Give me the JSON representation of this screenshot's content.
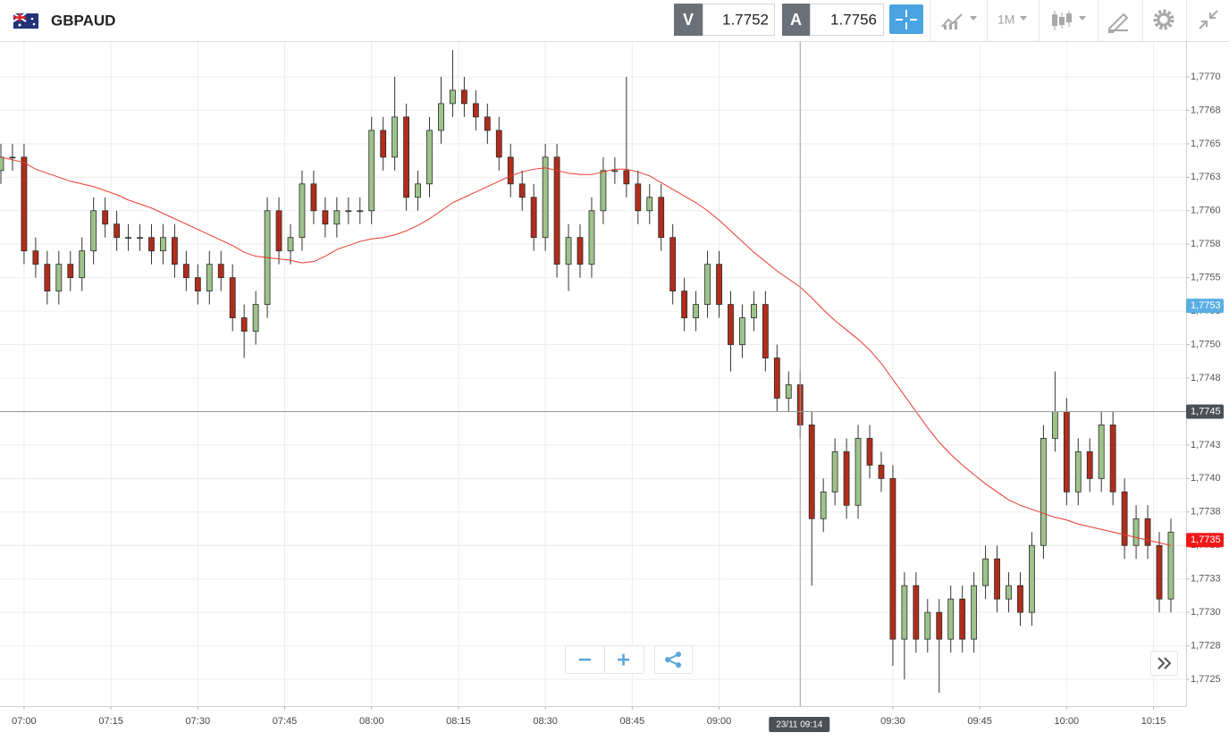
{
  "toolbar": {
    "symbol": "GBPAUD",
    "sell_label": "V",
    "sell_price": 1.7752,
    "buy_label": "A",
    "buy_price": 1.7756,
    "timeframe": "1M"
  },
  "chart_data": {
    "type": "candlestick",
    "x": [
      "06:56",
      "06:58",
      "07:00",
      "07:02",
      "07:04",
      "07:06",
      "07:08",
      "07:10",
      "07:12",
      "07:14",
      "07:16",
      "07:18",
      "07:20",
      "07:22",
      "07:24",
      "07:26",
      "07:28",
      "07:30",
      "07:32",
      "07:34",
      "07:36",
      "07:38",
      "07:40",
      "07:42",
      "07:44",
      "07:46",
      "07:48",
      "07:50",
      "07:52",
      "07:54",
      "07:56",
      "07:58",
      "08:00",
      "08:02",
      "08:04",
      "08:06",
      "08:08",
      "08:10",
      "08:12",
      "08:14",
      "08:16",
      "08:18",
      "08:20",
      "08:22",
      "08:24",
      "08:26",
      "08:28",
      "08:30",
      "08:32",
      "08:34",
      "08:36",
      "08:38",
      "08:40",
      "08:42",
      "08:44",
      "08:46",
      "08:48",
      "08:50",
      "08:52",
      "08:54",
      "08:56",
      "08:58",
      "09:00",
      "09:02",
      "09:04",
      "09:06",
      "09:08",
      "09:10",
      "09:12",
      "09:14",
      "09:16",
      "09:18",
      "09:20",
      "09:22",
      "09:24",
      "09:26",
      "09:28",
      "09:30",
      "09:32",
      "09:34",
      "09:36",
      "09:38",
      "09:40",
      "09:42",
      "09:44",
      "09:46",
      "09:48",
      "09:50",
      "09:52",
      "09:54",
      "09:56",
      "09:58",
      "10:00",
      "10:02",
      "10:04",
      "10:06",
      "10:08",
      "10:10",
      "10:12",
      "10:14",
      "10:16",
      "10:18"
    ],
    "open": [
      1.7763,
      1.7764,
      1.7764,
      1.7757,
      1.7756,
      1.7754,
      1.7756,
      1.7755,
      1.7757,
      1.776,
      1.7759,
      1.7758,
      1.7758,
      1.7758,
      1.7757,
      1.7758,
      1.7756,
      1.7755,
      1.7754,
      1.7756,
      1.7755,
      1.7752,
      1.7751,
      1.7753,
      1.776,
      1.7757,
      1.7758,
      1.7762,
      1.776,
      1.7759,
      1.776,
      1.776,
      1.776,
      1.7766,
      1.7764,
      1.7767,
      1.7761,
      1.7762,
      1.7766,
      1.7768,
      1.7769,
      1.7768,
      1.7767,
      1.7766,
      1.7764,
      1.7762,
      1.7761,
      1.7758,
      1.7764,
      1.7756,
      1.7758,
      1.7756,
      1.776,
      1.7763,
      1.7763,
      1.7762,
      1.776,
      1.7761,
      1.7758,
      1.7754,
      1.7752,
      1.7753,
      1.7756,
      1.7753,
      1.775,
      1.7752,
      1.7753,
      1.7749,
      1.7746,
      1.7747,
      1.7744,
      1.7737,
      1.7739,
      1.7742,
      1.7738,
      1.7743,
      1.7741,
      1.774,
      1.7728,
      1.7732,
      1.7728,
      1.773,
      1.7728,
      1.7731,
      1.7728,
      1.7732,
      1.7734,
      1.7731,
      1.7732,
      1.773,
      1.7735,
      1.7743,
      1.7745,
      1.7739,
      1.7742,
      1.774,
      1.7744,
      1.7739,
      1.7735,
      1.7737,
      1.7735,
      1.7731
    ],
    "high": [
      1.7765,
      1.7765,
      1.7765,
      1.7758,
      1.7757,
      1.7757,
      1.7757,
      1.7758,
      1.7761,
      1.7761,
      1.776,
      1.7759,
      1.7759,
      1.7759,
      1.7759,
      1.7759,
      1.7757,
      1.7756,
      1.7757,
      1.7757,
      1.7756,
      1.7753,
      1.7754,
      1.7761,
      1.7761,
      1.7759,
      1.7763,
      1.7763,
      1.7761,
      1.7761,
      1.7761,
      1.7761,
      1.7767,
      1.7767,
      1.777,
      1.7768,
      1.7763,
      1.7767,
      1.777,
      1.7772,
      1.777,
      1.7769,
      1.7768,
      1.7767,
      1.7765,
      1.7763,
      1.7762,
      1.7765,
      1.7765,
      1.7759,
      1.7759,
      1.7761,
      1.7764,
      1.7764,
      1.777,
      1.7763,
      1.7762,
      1.7762,
      1.7759,
      1.7755,
      1.7754,
      1.7757,
      1.7757,
      1.7754,
      1.7753,
      1.7754,
      1.7754,
      1.775,
      1.7748,
      1.7748,
      1.7745,
      1.774,
      1.7743,
      1.7743,
      1.7744,
      1.7744,
      1.7742,
      1.7741,
      1.7733,
      1.7733,
      1.7731,
      1.7731,
      1.7732,
      1.7732,
      1.7733,
      1.7735,
      1.7735,
      1.7733,
      1.7733,
      1.7736,
      1.7744,
      1.7748,
      1.7746,
      1.7743,
      1.7743,
      1.7745,
      1.7745,
      1.774,
      1.7738,
      1.7738,
      1.7736,
      1.7737
    ],
    "low": [
      1.7762,
      1.7763,
      1.7756,
      1.7755,
      1.7753,
      1.7753,
      1.7754,
      1.7754,
      1.7756,
      1.7758,
      1.7757,
      1.7757,
      1.7757,
      1.7756,
      1.7756,
      1.7755,
      1.7754,
      1.7753,
      1.7753,
      1.7754,
      1.7751,
      1.7749,
      1.775,
      1.7752,
      1.7756,
      1.7756,
      1.7757,
      1.7759,
      1.7758,
      1.7758,
      1.7759,
      1.7759,
      1.7759,
      1.7763,
      1.7763,
      1.776,
      1.776,
      1.7761,
      1.7765,
      1.7767,
      1.7767,
      1.7766,
      1.7765,
      1.7763,
      1.7761,
      1.776,
      1.7757,
      1.7757,
      1.7755,
      1.7754,
      1.7755,
      1.7755,
      1.7759,
      1.7762,
      1.7761,
      1.7759,
      1.7759,
      1.7757,
      1.7753,
      1.7751,
      1.7751,
      1.7752,
      1.7752,
      1.7748,
      1.7749,
      1.7751,
      1.7748,
      1.7745,
      1.7745,
      1.7743,
      1.7732,
      1.7736,
      1.7738,
      1.7737,
      1.7737,
      1.774,
      1.7739,
      1.7726,
      1.7725,
      1.7727,
      1.7727,
      1.7724,
      1.7727,
      1.7727,
      1.7727,
      1.7731,
      1.773,
      1.773,
      1.7729,
      1.7729,
      1.7734,
      1.7742,
      1.7738,
      1.7738,
      1.7739,
      1.7739,
      1.7738,
      1.7734,
      1.7734,
      1.7734,
      1.773,
      1.773
    ],
    "close": [
      1.7764,
      1.7764,
      1.7757,
      1.7756,
      1.7754,
      1.7756,
      1.7755,
      1.7757,
      1.776,
      1.7759,
      1.7758,
      1.7758,
      1.7758,
      1.7757,
      1.7758,
      1.7756,
      1.7755,
      1.7754,
      1.7756,
      1.7755,
      1.7752,
      1.7751,
      1.7753,
      1.776,
      1.7757,
      1.7758,
      1.7762,
      1.776,
      1.7759,
      1.776,
      1.776,
      1.776,
      1.7766,
      1.7764,
      1.7767,
      1.7761,
      1.7762,
      1.7766,
      1.7768,
      1.7769,
      1.7768,
      1.7767,
      1.7766,
      1.7764,
      1.7762,
      1.7761,
      1.7758,
      1.7764,
      1.7756,
      1.7758,
      1.7756,
      1.776,
      1.7763,
      1.7763,
      1.7762,
      1.776,
      1.7761,
      1.7758,
      1.7754,
      1.7752,
      1.7753,
      1.7756,
      1.7753,
      1.775,
      1.7752,
      1.7753,
      1.7749,
      1.7746,
      1.7747,
      1.7744,
      1.7737,
      1.7739,
      1.7742,
      1.7738,
      1.7743,
      1.7741,
      1.774,
      1.7728,
      1.7732,
      1.7728,
      1.773,
      1.7728,
      1.7731,
      1.7728,
      1.7732,
      1.7734,
      1.7731,
      1.7732,
      1.773,
      1.7735,
      1.7743,
      1.7745,
      1.7739,
      1.7742,
      1.774,
      1.7744,
      1.7739,
      1.7735,
      1.7737,
      1.7735,
      1.7731,
      1.7736
    ],
    "up_color": "#9dc38b",
    "down_color": "#b02d1c",
    "overlay": {
      "type": "line",
      "color": "#e8392c",
      "values": [
        1.7764,
        1.77638,
        1.77636,
        1.77631,
        1.77628,
        1.77625,
        1.77622,
        1.7762,
        1.77618,
        1.77615,
        1.77612,
        1.77608,
        1.77605,
        1.77602,
        1.77598,
        1.77594,
        1.7759,
        1.77586,
        1.77582,
        1.77578,
        1.77574,
        1.77569,
        1.77566,
        1.77565,
        1.77564,
        1.77563,
        1.77561,
        1.77562,
        1.77566,
        1.77571,
        1.77574,
        1.77577,
        1.77579,
        1.7758,
        1.77582,
        1.77585,
        1.77589,
        1.77594,
        1.776,
        1.77606,
        1.7761,
        1.77614,
        1.77618,
        1.77622,
        1.77626,
        1.77629,
        1.77631,
        1.77632,
        1.7763,
        1.77628,
        1.77627,
        1.77627,
        1.77629,
        1.77631,
        1.77631,
        1.77629,
        1.77626,
        1.77621,
        1.77616,
        1.77611,
        1.77606,
        1.776,
        1.77593,
        1.77585,
        1.77577,
        1.77569,
        1.77562,
        1.77555,
        1.77549,
        1.77543,
        1.77535,
        1.77526,
        1.77518,
        1.77511,
        1.77504,
        1.77496,
        1.77486,
        1.77474,
        1.77462,
        1.7745,
        1.77438,
        1.77427,
        1.77418,
        1.7741,
        1.77403,
        1.77396,
        1.7739,
        1.77384,
        1.7738,
        1.77377,
        1.77374,
        1.77371,
        1.77369,
        1.77366,
        1.77364,
        1.77362,
        1.7736,
        1.77358,
        1.77356,
        1.77354,
        1.77352,
        1.7735
      ]
    },
    "xlim": [
      "06:56",
      "10:21"
    ],
    "xticks": [
      "07:00",
      "07:15",
      "07:30",
      "07:45",
      "08:00",
      "08:15",
      "08:30",
      "08:45",
      "09:00",
      "09:30",
      "09:45",
      "10:00",
      "10:15"
    ],
    "ylim": [
      1.7723,
      1.77726
    ],
    "yticks": [
      {
        "value": 1.777,
        "label": "1,7770"
      },
      {
        "value": 1.77675,
        "label": "1,7768"
      },
      {
        "value": 1.7765,
        "label": "1,7765"
      },
      {
        "value": 1.77625,
        "label": "1,7763"
      },
      {
        "value": 1.776,
        "label": "1,7760"
      },
      {
        "value": 1.77575,
        "label": "1,7758"
      },
      {
        "value": 1.7755,
        "label": "1,7755"
      },
      {
        "value": 1.77525,
        "label": "1,7753"
      },
      {
        "value": 1.775,
        "label": "1,7750"
      },
      {
        "value": 1.77475,
        "label": "1,7748"
      },
      {
        "value": 1.7745,
        "label": "1,7745"
      },
      {
        "value": 1.77425,
        "label": "1,7743"
      },
      {
        "value": 1.774,
        "label": "1,7740"
      },
      {
        "value": 1.77375,
        "label": "1,7738"
      },
      {
        "value": 1.7735,
        "label": "1,7735"
      },
      {
        "value": 1.77325,
        "label": "1,7733"
      },
      {
        "value": 1.773,
        "label": "1,7730"
      },
      {
        "value": 1.77275,
        "label": "1,7728"
      },
      {
        "value": 1.7725,
        "label": "1,7725"
      }
    ],
    "grid": true,
    "crosshair": {
      "x": "09:14",
      "x_label": "23/11 09:14",
      "y": 1.7745,
      "y_label": "1,7745",
      "color": "#4a4f58"
    },
    "price_tags": [
      {
        "value": 1.77529,
        "label": "1,7753",
        "color": "#5aaee3"
      },
      {
        "value": 1.77354,
        "label": "1,7735",
        "color": "#f01818"
      }
    ]
  }
}
